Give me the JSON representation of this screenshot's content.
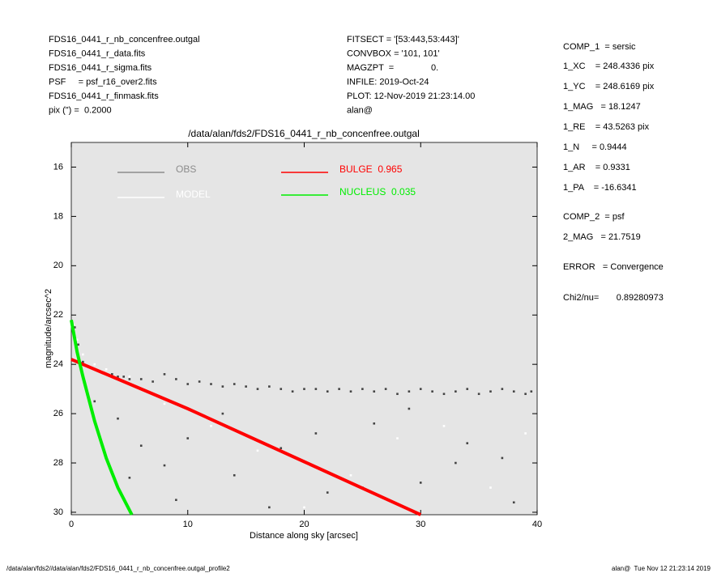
{
  "header": {
    "left": [
      "FDS16_0441_r_nb_concenfree.outgal",
      "FDS16_0441_r_data.fits",
      "FDS16_0441_r_sigma.fits",
      "PSF     = psf_r16_over2.fits",
      "FDS16_0441_r_finmask.fits",
      "pix (\") =  0.2000"
    ],
    "center": [
      "FITSECT = '[53:443,53:443]'",
      "CONVBOX = '101, 101'",
      "MAGZPT  =               0.",
      "INFILE: 2019-Oct-24",
      "PLOT: 12-Nov-2019 21:23:14.00",
      "alan@"
    ]
  },
  "fit_info": [
    "COMP_1  = sersic",
    "1_XC    = 248.4336 pix",
    "1_YC    = 248.6169 pix",
    "1_MAG   = 18.1247",
    "1_RE    = 43.5263 pix",
    "1_N     = 0.9444",
    "1_AR    = 0.9331",
    "1_PA    = -16.6341",
    "COMP_2  = psf",
    "2_MAG   = 21.7519",
    "ERROR   = Convergence",
    "Chi2/nu=       0.89280973"
  ],
  "footer": {
    "left": "/data/alan/fds2//data/alan/fds2/FDS16_0441_r_nb_concenfree.outgal_profile2",
    "right": "alan@  Tue Nov 12 21:23:14 2019"
  },
  "chart_data": {
    "type": "scatter",
    "title": "/data/alan/fds2/FDS16_0441_r_nb_concenfree.outgal",
    "x_label": "Distance along sky [arcsec]",
    "y_label": "magnitude/arcsec^2",
    "xlim": [
      0,
      40
    ],
    "ylim": [
      30.1,
      15
    ],
    "xticks": [
      0,
      10,
      20,
      30,
      40
    ],
    "yticks": [
      16,
      18,
      20,
      22,
      24,
      26,
      28,
      30
    ],
    "series": [
      {
        "name": "OBS",
        "color": "#444444",
        "legend_color": "#8c8c8c",
        "kind": "points",
        "x": [
          0.3,
          0.6,
          1,
          1.5,
          2,
          2.5,
          3,
          3.5,
          4,
          4.5,
          5,
          6,
          7,
          8,
          9,
          10,
          11,
          12,
          13,
          14,
          15,
          16,
          17,
          18,
          19,
          20,
          21,
          22,
          23,
          24,
          25,
          26,
          27,
          28,
          29,
          30,
          31,
          32,
          33,
          34,
          35,
          36,
          37,
          38,
          39,
          39.5,
          2,
          4,
          6,
          8,
          10,
          14,
          18,
          22,
          26,
          30,
          34,
          38,
          5,
          9,
          13,
          17,
          21,
          25,
          29,
          33,
          37
        ],
        "values": [
          22.5,
          23.2,
          23.9,
          24.1,
          24.2,
          24.3,
          24.4,
          24.4,
          24.5,
          24.5,
          24.6,
          24.6,
          24.7,
          24.4,
          24.6,
          24.8,
          24.7,
          24.8,
          24.9,
          24.8,
          24.9,
          25.0,
          24.9,
          25.0,
          25.1,
          25.0,
          25.0,
          25.1,
          25.0,
          25.1,
          25.0,
          25.1,
          25.0,
          25.2,
          25.1,
          25.0,
          25.1,
          25.2,
          25.1,
          25.0,
          25.2,
          25.1,
          25.0,
          25.1,
          25.2,
          25.1,
          25.5,
          26.2,
          27.3,
          28.1,
          27.0,
          28.5,
          27.4,
          29.2,
          26.4,
          28.8,
          27.2,
          29.6,
          28.6,
          29.5,
          26.0,
          29.8,
          26.8,
          29.0,
          25.8,
          28.0,
          27.8
        ]
      },
      {
        "name": "MODEL",
        "color": "#ffffff",
        "kind": "points",
        "x": [
          0.2,
          0.5,
          1,
          2,
          3,
          5,
          8,
          12,
          16,
          20,
          24,
          28,
          32,
          36,
          39
        ],
        "values": [
          22.4,
          23.0,
          23.6,
          24.0,
          24.2,
          24.5,
          25.6,
          26.5,
          27.5,
          29.8,
          28.5,
          27.0,
          26.5,
          29.0,
          26.8
        ]
      },
      {
        "name": "BULGE  0.965",
        "color": "#ff0000",
        "kind": "line",
        "x": [
          0,
          10,
          20,
          30
        ],
        "values": [
          23.8,
          25.8,
          27.95,
          30.1
        ]
      },
      {
        "name": "NUCLEUS  0.035",
        "color": "#00ee00",
        "kind": "line",
        "x": [
          0,
          0.5,
          1,
          2,
          3,
          4,
          5.2
        ],
        "values": [
          22.2,
          23.5,
          24.5,
          26.3,
          27.8,
          29,
          30.1
        ]
      }
    ]
  }
}
